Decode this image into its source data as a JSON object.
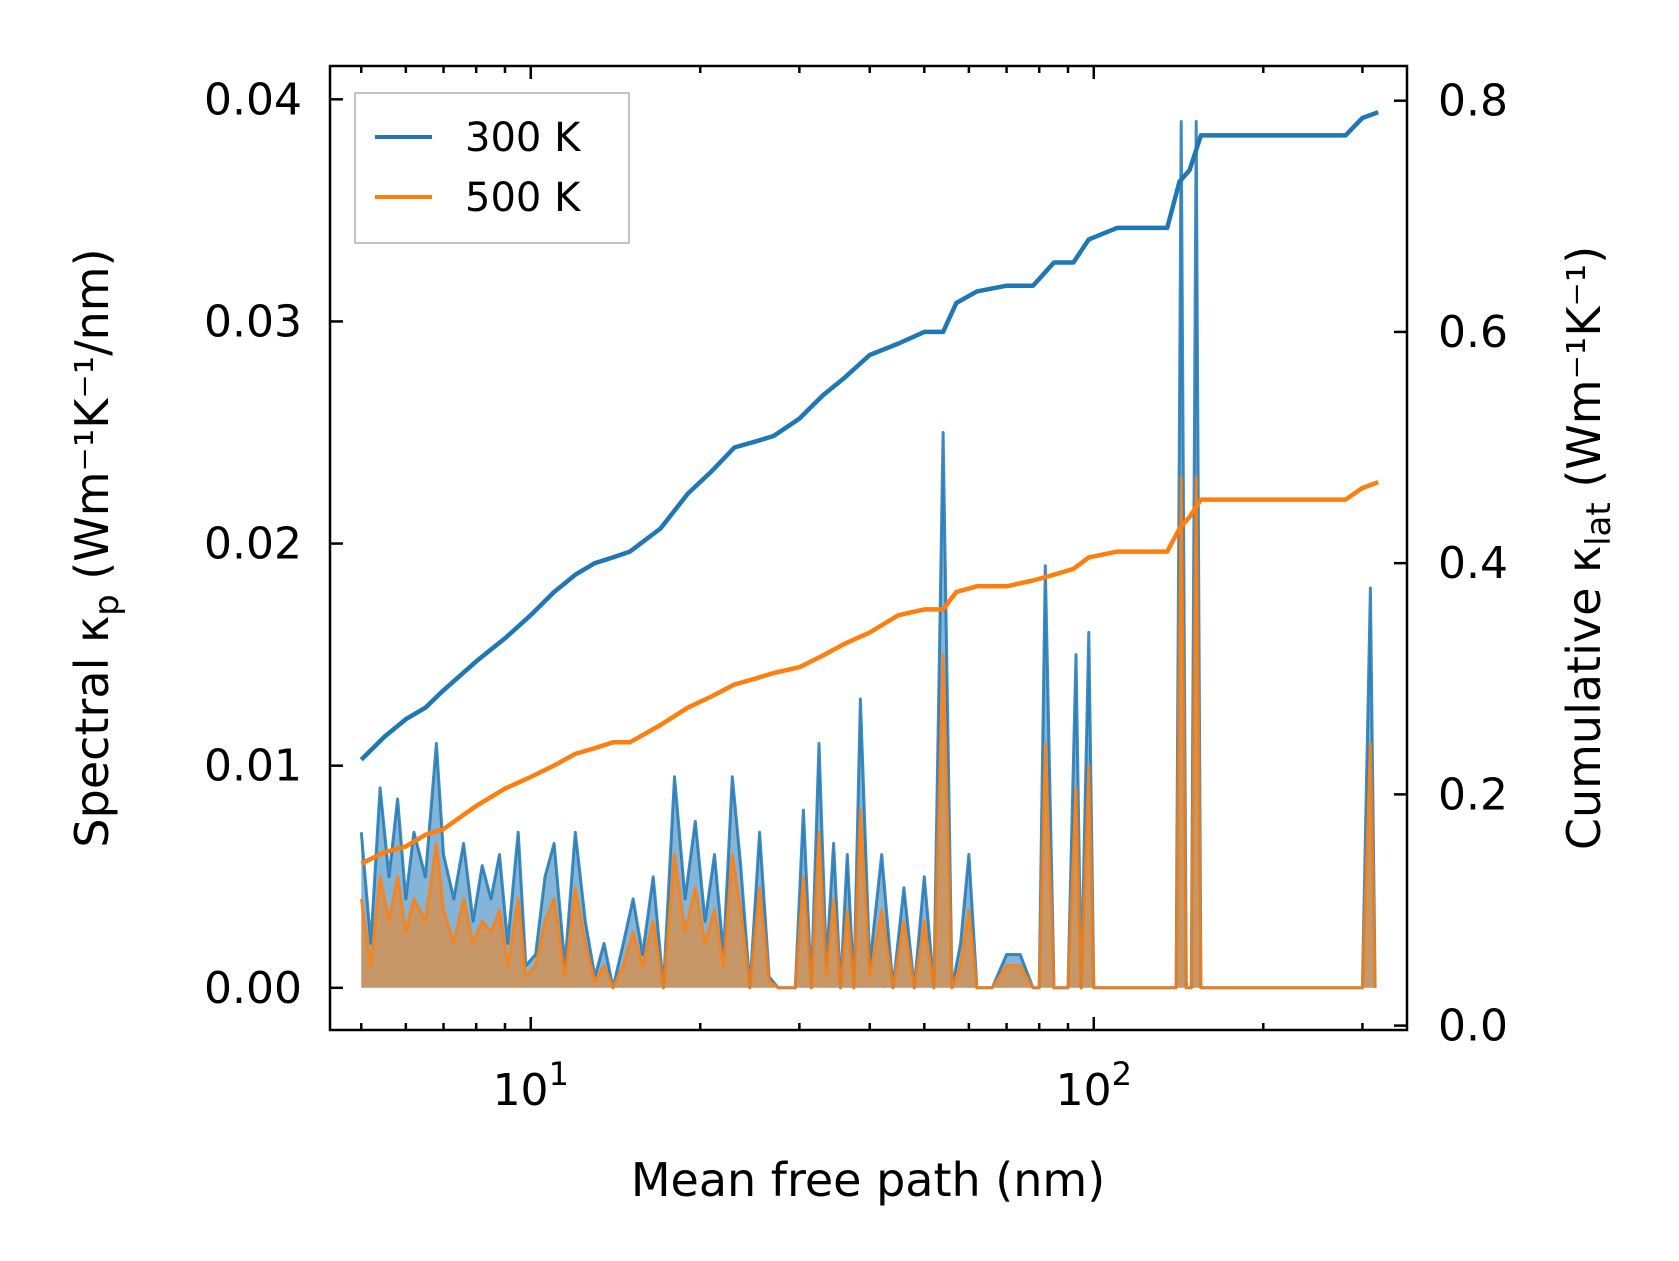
{
  "chart_data": {
    "type": "line",
    "xlabel": "Mean free path (nm)",
    "ylabel_left": {
      "main": "Spectral κ",
      "sub": "p",
      "units": " (Wm⁻¹K⁻¹/nm)"
    },
    "ylabel_right": {
      "main": "Cumulative κ",
      "sub": "lat",
      "units": " (Wm⁻¹K⁻¹)"
    },
    "x_scale": "log",
    "xlim": [
      4.4,
      360
    ],
    "ylim_left": [
      -0.0019,
      0.0415
    ],
    "ylim_right": [
      -0.0038,
      0.83
    ],
    "x_major_ticks": [
      {
        "value": 10,
        "base": "10",
        "exp": "1"
      },
      {
        "value": 100,
        "base": "10",
        "exp": "2"
      }
    ],
    "left_ticks": [
      {
        "value": 0.0,
        "label": "0.00"
      },
      {
        "value": 0.01,
        "label": "0.01"
      },
      {
        "value": 0.02,
        "label": "0.02"
      },
      {
        "value": 0.03,
        "label": "0.03"
      },
      {
        "value": 0.04,
        "label": "0.04"
      }
    ],
    "right_ticks": [
      {
        "value": 0.0,
        "label": "0.0"
      },
      {
        "value": 0.2,
        "label": "0.2"
      },
      {
        "value": 0.4,
        "label": "0.4"
      },
      {
        "value": 0.6,
        "label": "0.6"
      },
      {
        "value": 0.8,
        "label": "0.8"
      }
    ],
    "legend": {
      "placement": "top-left"
    },
    "series": [
      {
        "name": "300 K",
        "color": "#1f77b4",
        "cumulative": {
          "x": [
            5.0,
            5.5,
            6.0,
            6.5,
            7.0,
            8.0,
            9.0,
            10.0,
            11.0,
            12.0,
            13.0,
            14.0,
            15.0,
            17.0,
            19.0,
            21.0,
            23.0,
            25.0,
            27.0,
            30.0,
            33.0,
            36.0,
            40.0,
            45.0,
            50.0,
            54.0,
            57.0,
            62.0,
            70.0,
            78.0,
            85.0,
            92.0,
            98.0,
            110.0,
            135.0,
            142.0,
            148.0,
            155.0,
            200.0,
            280.0,
            300.0,
            320.0
          ],
          "y": [
            0.23,
            0.25,
            0.265,
            0.275,
            0.29,
            0.315,
            0.335,
            0.355,
            0.375,
            0.39,
            0.4,
            0.405,
            0.41,
            0.43,
            0.46,
            0.48,
            0.5,
            0.505,
            0.51,
            0.525,
            0.545,
            0.56,
            0.58,
            0.59,
            0.6,
            0.6,
            0.625,
            0.635,
            0.64,
            0.64,
            0.66,
            0.66,
            0.68,
            0.69,
            0.69,
            0.73,
            0.74,
            0.77,
            0.77,
            0.77,
            0.785,
            0.79
          ]
        },
        "spectral": {
          "x": [
            5.0,
            5.2,
            5.4,
            5.6,
            5.8,
            6.0,
            6.2,
            6.5,
            6.8,
            7.0,
            7.3,
            7.6,
            7.9,
            8.2,
            8.5,
            8.8,
            9.1,
            9.5,
            9.8,
            10.2,
            10.6,
            11.0,
            11.5,
            12.0,
            12.5,
            13.0,
            13.5,
            14.0,
            14.6,
            15.2,
            15.8,
            16.5,
            17.2,
            18.0,
            18.8,
            19.6,
            20.4,
            21.2,
            22.0,
            22.8,
            23.6,
            24.5,
            25.5,
            26.5,
            27.5,
            28.5,
            29.5,
            30.5,
            31.5,
            32.5,
            33.5,
            34.5,
            35.5,
            36.5,
            37.5,
            38.5,
            40.0,
            42.0,
            44.0,
            46.0,
            48.0,
            50.0,
            52.0,
            54.0,
            56.0,
            58.0,
            60.0,
            62.0,
            66.0,
            70.0,
            74.0,
            78.0,
            80.0,
            82.0,
            85.0,
            90.0,
            93.0,
            95.0,
            98.0,
            100.0,
            103.0,
            106.0,
            140.0,
            143.0,
            146.0,
            149.0,
            152.0,
            155.0,
            158.0,
            300.0,
            310.0,
            316.0
          ],
          "y": [
            0.007,
            0.002,
            0.009,
            0.005,
            0.0085,
            0.004,
            0.007,
            0.005,
            0.011,
            0.006,
            0.004,
            0.0065,
            0.003,
            0.0055,
            0.004,
            0.006,
            0.002,
            0.007,
            0.001,
            0.0015,
            0.005,
            0.0065,
            0.001,
            0.007,
            0.003,
            0.0005,
            0.002,
            0.0,
            0.002,
            0.004,
            0.0015,
            0.005,
            0.0,
            0.0095,
            0.004,
            0.0075,
            0.003,
            0.006,
            0.0015,
            0.0095,
            0.0055,
            0.0,
            0.007,
            0.0005,
            0.0,
            0.0,
            0.0,
            0.008,
            0.0,
            0.011,
            0.001,
            0.0065,
            0.0,
            0.006,
            0.0,
            0.013,
            0.001,
            0.006,
            0.0,
            0.0045,
            0.0,
            0.005,
            0.0,
            0.025,
            0.0,
            0.002,
            0.006,
            0.0,
            0.0,
            0.0015,
            0.0015,
            0.0,
            0.0,
            0.019,
            0.0,
            0.0,
            0.015,
            0.0,
            0.016,
            0.0,
            0.0,
            0.0,
            0.0,
            0.039,
            0.0,
            0.0,
            0.039,
            0.0,
            0.0,
            0.0,
            0.018,
            0.0
          ]
        }
      },
      {
        "name": "500 K",
        "color": "#ff7f0e",
        "cumulative": {
          "x": [
            5.0,
            5.5,
            6.0,
            6.5,
            7.0,
            8.0,
            9.0,
            10.0,
            11.0,
            12.0,
            13.0,
            14.0,
            15.0,
            17.0,
            19.0,
            21.0,
            23.0,
            25.0,
            27.0,
            30.0,
            33.0,
            36.0,
            40.0,
            45.0,
            50.0,
            54.0,
            57.0,
            62.0,
            70.0,
            78.0,
            85.0,
            92.0,
            98.0,
            110.0,
            135.0,
            142.0,
            148.0,
            155.0,
            200.0,
            280.0,
            300.0,
            320.0
          ],
          "y": [
            0.14,
            0.15,
            0.155,
            0.165,
            0.17,
            0.19,
            0.205,
            0.215,
            0.225,
            0.235,
            0.24,
            0.245,
            0.245,
            0.26,
            0.275,
            0.285,
            0.295,
            0.3,
            0.305,
            0.31,
            0.32,
            0.33,
            0.34,
            0.355,
            0.36,
            0.36,
            0.375,
            0.38,
            0.38,
            0.385,
            0.39,
            0.395,
            0.405,
            0.41,
            0.41,
            0.43,
            0.44,
            0.455,
            0.455,
            0.455,
            0.465,
            0.47
          ]
        },
        "spectral": {
          "x": [
            5.0,
            5.2,
            5.4,
            5.6,
            5.8,
            6.0,
            6.2,
            6.5,
            6.8,
            7.0,
            7.3,
            7.6,
            7.9,
            8.2,
            8.5,
            8.8,
            9.1,
            9.5,
            9.8,
            10.2,
            10.6,
            11.0,
            11.5,
            12.0,
            12.5,
            13.0,
            13.5,
            14.0,
            14.6,
            15.2,
            15.8,
            16.5,
            17.2,
            18.0,
            18.8,
            19.6,
            20.4,
            21.2,
            22.0,
            22.8,
            23.6,
            24.5,
            25.5,
            26.5,
            27.5,
            28.5,
            29.5,
            30.5,
            31.5,
            32.5,
            33.5,
            34.5,
            35.5,
            36.5,
            37.5,
            38.5,
            40.0,
            42.0,
            44.0,
            46.0,
            48.0,
            50.0,
            52.0,
            54.0,
            56.0,
            58.0,
            60.0,
            62.0,
            66.0,
            70.0,
            74.0,
            78.0,
            80.0,
            82.0,
            85.0,
            90.0,
            93.0,
            95.0,
            98.0,
            100.0,
            103.0,
            106.0,
            140.0,
            143.0,
            146.0,
            149.0,
            152.0,
            155.0,
            158.0,
            300.0,
            310.0,
            316.0
          ],
          "y": [
            0.004,
            0.001,
            0.005,
            0.003,
            0.005,
            0.0025,
            0.004,
            0.003,
            0.0065,
            0.0035,
            0.002,
            0.004,
            0.002,
            0.003,
            0.0025,
            0.0035,
            0.001,
            0.004,
            0.0005,
            0.001,
            0.003,
            0.004,
            0.0005,
            0.0045,
            0.002,
            0.0003,
            0.001,
            0.0,
            0.001,
            0.0025,
            0.001,
            0.003,
            0.0,
            0.006,
            0.0025,
            0.0045,
            0.002,
            0.0035,
            0.001,
            0.006,
            0.0035,
            0.0,
            0.0045,
            0.0003,
            0.0,
            0.0,
            0.0,
            0.005,
            0.0,
            0.007,
            0.0005,
            0.004,
            0.0,
            0.0035,
            0.0,
            0.008,
            0.0005,
            0.0035,
            0.0,
            0.003,
            0.0,
            0.003,
            0.0,
            0.015,
            0.0,
            0.001,
            0.0035,
            0.0,
            0.0,
            0.001,
            0.001,
            0.0,
            0.0,
            0.011,
            0.0,
            0.0,
            0.009,
            0.0,
            0.01,
            0.0,
            0.0,
            0.0,
            0.0,
            0.023,
            0.0,
            0.0,
            0.023,
            0.0,
            0.0,
            0.0,
            0.011,
            0.0
          ]
        }
      }
    ]
  }
}
